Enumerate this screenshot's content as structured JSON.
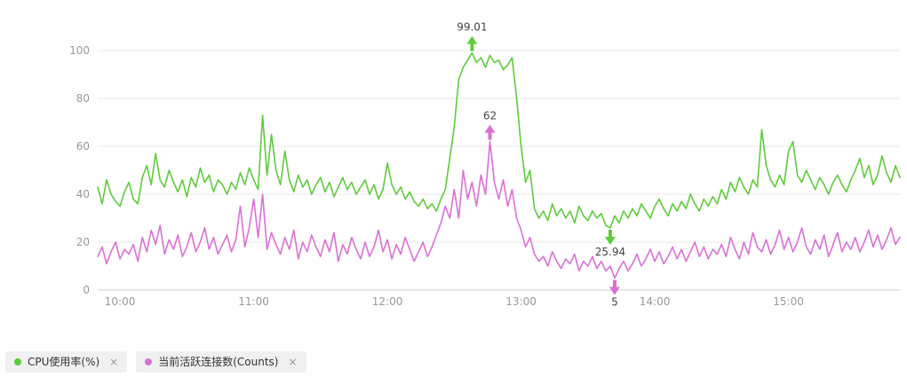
{
  "legend": {
    "items": [
      {
        "label": "CPU使用率(%)",
        "color": "#5ecb3c",
        "close": "×"
      },
      {
        "label": "当前活跃连接数(Counts)",
        "color": "#da70d6",
        "close": "×"
      }
    ]
  },
  "chart_data": {
    "type": "line",
    "title": "",
    "grid": true,
    "x_axis": {
      "start_min": 590,
      "end_min": 950,
      "step_min": 2,
      "ticks": [
        {
          "label": "10:00",
          "min": 600
        },
        {
          "label": "11:00",
          "min": 660
        },
        {
          "label": "12:00",
          "min": 720
        },
        {
          "label": "13:00",
          "min": 780
        },
        {
          "label": "14:00",
          "min": 840
        },
        {
          "label": "15:00",
          "min": 900
        }
      ]
    },
    "y_axis": {
      "min": 0,
      "max": 100,
      "ticks": [
        0,
        20,
        40,
        60,
        80,
        100
      ]
    },
    "series": [
      {
        "name": "CPU使用率(%)",
        "color": "#5ecb3c",
        "values": [
          43,
          36,
          46,
          40,
          37,
          35,
          41,
          45,
          38,
          36,
          47,
          52,
          44,
          57,
          46,
          43,
          50,
          45,
          41,
          46,
          39,
          47,
          43,
          51,
          45,
          48,
          41,
          46,
          44,
          40,
          45,
          42,
          49,
          44,
          51,
          46,
          42,
          73,
          48,
          65,
          50,
          44,
          58,
          46,
          41,
          48,
          43,
          46,
          40,
          44,
          47,
          41,
          45,
          39,
          43,
          47,
          42,
          45,
          40,
          43,
          46,
          40,
          44,
          38,
          42,
          53,
          44,
          40,
          43,
          38,
          41,
          37,
          35,
          38,
          34,
          36,
          33,
          38,
          42,
          55,
          68,
          88,
          93,
          96,
          99.01,
          95,
          97,
          93,
          98,
          95,
          96,
          92,
          94,
          97,
          80,
          60,
          45,
          50,
          34,
          30,
          33,
          29,
          36,
          31,
          34,
          30,
          33,
          28,
          35,
          31,
          29,
          33,
          30,
          32,
          27,
          25.94,
          31,
          28,
          33,
          30,
          34,
          31,
          36,
          33,
          30,
          35,
          38,
          34,
          31,
          36,
          33,
          37,
          34,
          40,
          36,
          33,
          38,
          35,
          39,
          36,
          42,
          38,
          45,
          41,
          47,
          43,
          40,
          46,
          43,
          67,
          52,
          46,
          43,
          48,
          44,
          58,
          62,
          48,
          45,
          50,
          46,
          42,
          47,
          44,
          40,
          45,
          48,
          44,
          41,
          46,
          50,
          55,
          47,
          52,
          44,
          48,
          56,
          49,
          45,
          52,
          47
        ]
      },
      {
        "name": "当前活跃连接数(Counts)",
        "color": "#da70d6",
        "values": [
          14,
          18,
          11,
          16,
          20,
          13,
          17,
          15,
          19,
          12,
          22,
          16,
          25,
          19,
          27,
          15,
          21,
          17,
          23,
          14,
          18,
          24,
          16,
          20,
          26,
          17,
          22,
          15,
          19,
          23,
          16,
          21,
          35,
          18,
          26,
          38,
          22,
          40,
          17,
          24,
          19,
          15,
          22,
          17,
          25,
          13,
          20,
          16,
          23,
          18,
          14,
          21,
          16,
          24,
          12,
          19,
          15,
          22,
          17,
          13,
          20,
          14,
          18,
          25,
          16,
          21,
          13,
          19,
          15,
          22,
          17,
          12,
          16,
          20,
          14,
          18,
          23,
          28,
          35,
          30,
          42,
          30,
          50,
          38,
          45,
          35,
          48,
          40,
          62,
          45,
          38,
          46,
          35,
          42,
          30,
          25,
          18,
          22,
          15,
          12,
          14,
          10,
          16,
          12,
          9,
          13,
          11,
          15,
          8,
          12,
          10,
          14,
          9,
          12,
          8,
          10,
          5,
          9,
          12,
          8,
          11,
          15,
          10,
          13,
          17,
          12,
          16,
          11,
          14,
          18,
          13,
          17,
          12,
          16,
          20,
          14,
          18,
          13,
          17,
          15,
          19,
          14,
          22,
          17,
          13,
          20,
          15,
          24,
          18,
          16,
          21,
          15,
          19,
          25,
          17,
          22,
          16,
          20,
          26,
          18,
          15,
          21,
          17,
          23,
          14,
          19,
          24,
          16,
          20,
          17,
          22,
          16,
          20,
          25,
          18,
          23,
          17,
          21,
          26,
          19,
          22
        ]
      }
    ],
    "annotations": [
      {
        "series_index": 0,
        "kind": "max",
        "label": "99.01",
        "time_min": 758,
        "value": 99.01
      },
      {
        "series_index": 1,
        "kind": "max",
        "label": "62",
        "time_min": 766,
        "value": 62
      },
      {
        "series_index": 0,
        "kind": "min",
        "label": "25.94",
        "time_min": 820,
        "value": 25.94
      },
      {
        "series_index": 1,
        "kind": "min",
        "label": "5",
        "time_min": 822,
        "value": 5
      }
    ],
    "colors": {
      "axis_label": "#999999",
      "gridline": "#e8e8e8",
      "axis_line": "#cccccc",
      "annotation_text": "#444444"
    }
  }
}
